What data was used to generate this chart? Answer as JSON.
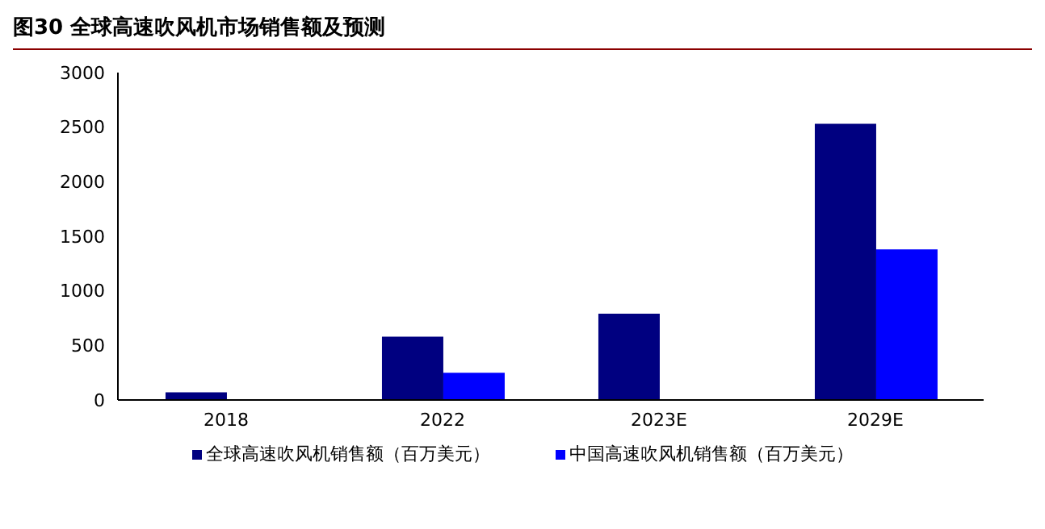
{
  "chart_data": {
    "type": "bar",
    "title": "图30 全球高速吹风机市场销售额及预测",
    "categories": [
      "2018",
      "2022",
      "2023E",
      "2029E"
    ],
    "series": [
      {
        "name": "全球高速吹风机销售额（百万美元）",
        "color": "#000080",
        "values": [
          70,
          580,
          790,
          2530
        ]
      },
      {
        "name": "中国高速吹风机销售额（百万美元）",
        "color": "#0000ff",
        "values": [
          null,
          250,
          null,
          1380
        ]
      }
    ],
    "ylim": [
      0,
      3000
    ],
    "yticks": [
      0,
      500,
      1000,
      1500,
      2000,
      2500,
      3000
    ],
    "grid": false,
    "legend": "bottom"
  }
}
